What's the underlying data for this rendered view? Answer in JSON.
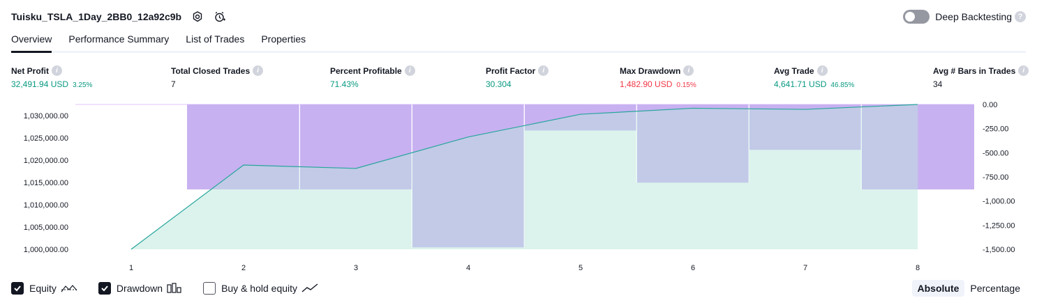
{
  "header": {
    "title": "Tuisku_TSLA_1Day_2BB0_12a92c9b",
    "settings_icon": "gear-icon",
    "alert_icon": "alarm-clock-icon",
    "deep_backtesting_label": "Deep Backtesting",
    "deep_backtesting_on": false
  },
  "tabs": [
    {
      "label": "Overview",
      "active": true
    },
    {
      "label": "Performance Summary",
      "active": false
    },
    {
      "label": "List of Trades",
      "active": false
    },
    {
      "label": "Properties",
      "active": false
    }
  ],
  "metrics": [
    {
      "label": "Net Profit",
      "value": "32,491.94 USD",
      "sub": "3.25%",
      "tone": "pos"
    },
    {
      "label": "Total Closed Trades",
      "value": "7",
      "sub": "",
      "tone": "neutral"
    },
    {
      "label": "Percent Profitable",
      "value": "71.43%",
      "sub": "",
      "tone": "pos"
    },
    {
      "label": "Profit Factor",
      "value": "30.304",
      "sub": "",
      "tone": "pos"
    },
    {
      "label": "Max Drawdown",
      "value": "1,482.90 USD",
      "sub": "0.15%",
      "tone": "neg"
    },
    {
      "label": "Avg Trade",
      "value": "4,641.71 USD",
      "sub": "46.85%",
      "tone": "pos"
    },
    {
      "label": "Avg # Bars in Trades",
      "value": "34",
      "sub": "",
      "tone": "neutral"
    }
  ],
  "chart_data": {
    "type": "line",
    "x": [
      1,
      2,
      3,
      4,
      5,
      6,
      7,
      8
    ],
    "x_tick_labels": [
      "1",
      "2",
      "3",
      "4",
      "5",
      "6",
      "7",
      "8"
    ],
    "series": [
      {
        "name": "Equity",
        "axis": "left",
        "type": "area",
        "values": [
          1000000,
          1018900,
          1018150,
          1025200,
          1030300,
          1031650,
          1031400,
          1032500
        ]
      },
      {
        "name": "Drawdown",
        "axis": "right",
        "type": "bar",
        "values": [
          0,
          -880,
          -880,
          -1480,
          -270,
          -810,
          -470,
          -880
        ]
      }
    ],
    "y_left_ticks": [
      "1,000,000.00",
      "1,005,000.00",
      "1,010,000.00",
      "1,015,000.00",
      "1,020,000.00",
      "1,025,000.00",
      "1,030,000.00"
    ],
    "y_left_range": [
      1000000,
      1032500
    ],
    "y_right_ticks": [
      "0.00",
      "-250.00",
      "-500.00",
      "-750.00",
      "-1,000.00",
      "-1,250.00",
      "-1,500.00"
    ],
    "y_right_range": [
      -1500,
      0
    ],
    "colors": {
      "equity_line": "#26a69a",
      "equity_fill": "#d6f1ea",
      "drawdown_bar": "#c7b0f5",
      "drawdown_bg": "#e1c4fb",
      "overlap": "#b1b3e3"
    }
  },
  "legend": {
    "equity_label": "Equity",
    "equity_checked": true,
    "drawdown_label": "Drawdown",
    "drawdown_checked": true,
    "buyhold_label": "Buy & hold equity",
    "buyhold_checked": false
  },
  "view_mode": {
    "absolute_label": "Absolute",
    "percentage_label": "Percentage",
    "active": "Absolute"
  }
}
